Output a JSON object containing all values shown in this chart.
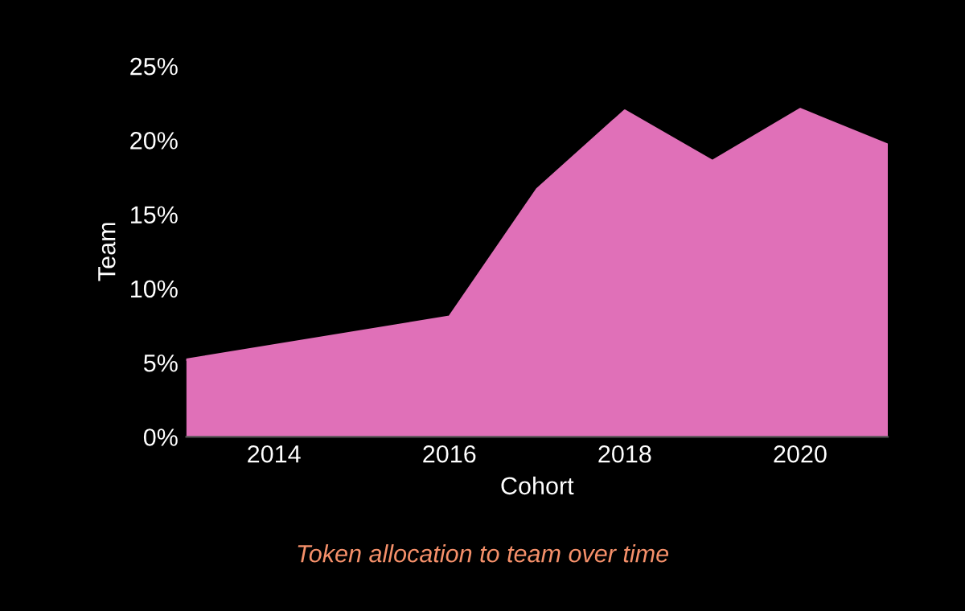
{
  "chart_data": {
    "type": "area",
    "xlabel": "Cohort",
    "ylabel": "Team",
    "x": [
      2013,
      2016,
      2017,
      2018,
      2019,
      2020,
      2021
    ],
    "series": [
      {
        "color": "#e070b8",
        "values": [
          5.2,
          8.1,
          16.7,
          22.0,
          18.6,
          22.1,
          19.7
        ]
      }
    ],
    "xlim": [
      2013,
      2021
    ],
    "ylim": [
      0,
      25
    ],
    "xticks": [
      2014,
      2016,
      2018,
      2020
    ],
    "yticks": [
      {
        "value": 0,
        "label": "0%"
      },
      {
        "value": 5,
        "label": "5%"
      },
      {
        "value": 10,
        "label": "10%"
      },
      {
        "value": 15,
        "label": "15%"
      },
      {
        "value": 20,
        "label": "20%"
      },
      {
        "value": 25,
        "label": "25%"
      }
    ],
    "grid": false,
    "annotations": [
      "Token allocation to team over time"
    ]
  }
}
